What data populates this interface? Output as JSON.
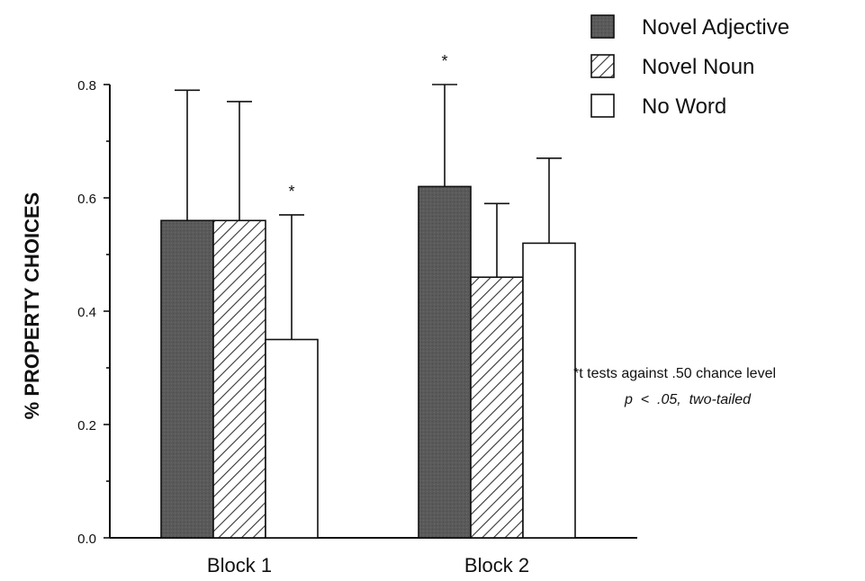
{
  "chart_data": {
    "type": "bar",
    "categories": [
      "Block 1",
      "Block 2"
    ],
    "series": [
      {
        "name": "Novel Adjective",
        "values": [
          0.56,
          0.62
        ],
        "error_upper": [
          0.79,
          0.8
        ],
        "pattern": "dark"
      },
      {
        "name": "Novel Noun",
        "values": [
          0.56,
          0.46
        ],
        "error_upper": [
          0.77,
          0.59
        ],
        "pattern": "hatched"
      },
      {
        "name": "No Word",
        "values": [
          0.35,
          0.52
        ],
        "error_upper": [
          0.57,
          0.67
        ],
        "pattern": "white"
      }
    ],
    "significance": [
      {
        "category": "Block 1",
        "series": "No Word",
        "label": "*"
      },
      {
        "category": "Block 2",
        "series": "Novel Adjective",
        "label": "*"
      }
    ],
    "title": "",
    "xlabel": "",
    "ylabel": "% PROPERTY CHOICES",
    "ylim": [
      0.0,
      0.8
    ],
    "yticks": [
      "0.0",
      "0.2",
      "0.4",
      "0.6",
      "0.8"
    ],
    "grid": false,
    "legend_position": "top-right",
    "annotation": {
      "line1": "*t tests against .50 chance level",
      "line2": "p  <  .05,  two-tailed"
    },
    "colors": {
      "dark_fill": "#5a5a5a",
      "hatch": "#333333",
      "axis": "#111111"
    }
  }
}
